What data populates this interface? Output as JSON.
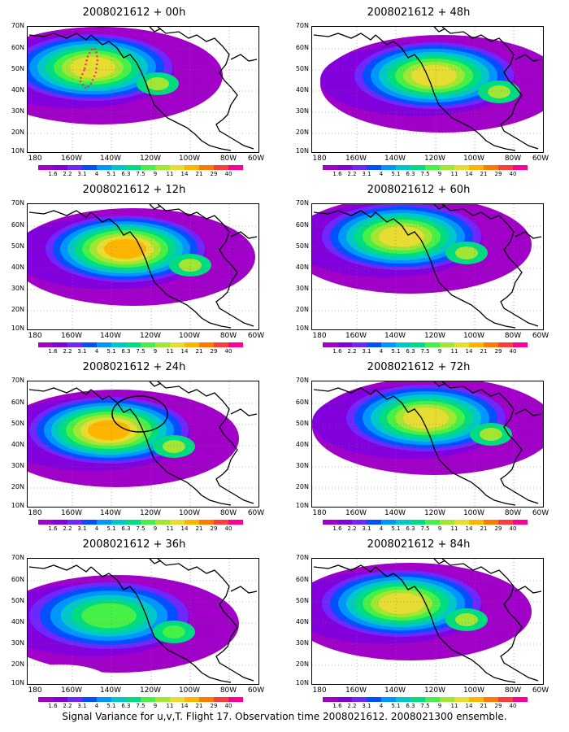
{
  "figure": {
    "caption": "Signal Variance for u,v,T. Flight 17. Observation time 2008021612. 2008021300 ensemble."
  },
  "colorbar": {
    "labels": [
      "1.6",
      "2.2",
      "3.1",
      "4",
      "5.1",
      "6.3",
      "7.5",
      "9",
      "11",
      "14",
      "21",
      "29",
      "40"
    ],
    "colors": [
      "#a000c8",
      "#8200dc",
      "#6e28ff",
      "#0050ff",
      "#0096ff",
      "#00c8c8",
      "#00dc82",
      "#46f046",
      "#a0e632",
      "#e6dc32",
      "#ffb400",
      "#ff7800",
      "#ff3c3c",
      "#ff0096"
    ]
  },
  "axes": {
    "lat_labels": [
      "70N",
      "60N",
      "50N",
      "40N",
      "30N",
      "20N",
      "10N"
    ],
    "lon_labels": [
      "180",
      "160W",
      "140W",
      "120W",
      "100W",
      "80W",
      "60W"
    ]
  },
  "panels": [
    {
      "title": "2008021612 + 00h",
      "peak_level": 9,
      "flight_track": true,
      "ellipse": false
    },
    {
      "title": "2008021612 + 48h",
      "peak_level": 9,
      "flight_track": false,
      "ellipse": false
    },
    {
      "title": "2008021612 + 12h",
      "peak_level": 10,
      "flight_track": false,
      "ellipse": false
    },
    {
      "title": "2008021612 + 60h",
      "peak_level": 9,
      "flight_track": false,
      "ellipse": false
    },
    {
      "title": "2008021612 + 24h",
      "peak_level": 10,
      "flight_track": false,
      "ellipse": true
    },
    {
      "title": "2008021612 + 72h",
      "peak_level": 9,
      "flight_track": false,
      "ellipse": false
    },
    {
      "title": "2008021612 + 36h",
      "peak_level": 7,
      "flight_track": false,
      "ellipse": false
    },
    {
      "title": "2008021612 + 84h",
      "peak_level": 9,
      "flight_track": false,
      "ellipse": false
    }
  ]
}
